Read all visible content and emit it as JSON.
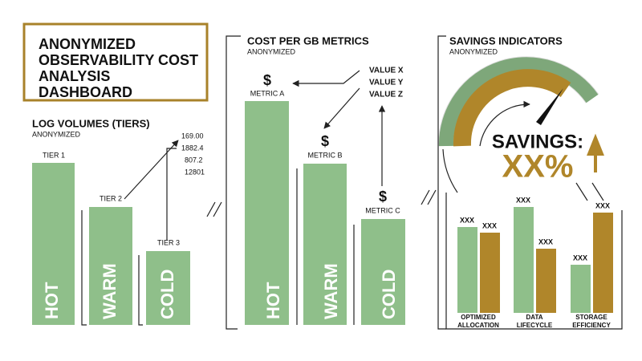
{
  "title": [
    "ANONYMIZED",
    "OBSERVABILITY COST",
    "ANALYSIS",
    "DASHBOARD"
  ],
  "log_volumes": {
    "title": "LOG VOLUMES (TIERS)",
    "subtitle": "ANONYMIZED",
    "tiers": [
      {
        "label": "TIER 1",
        "name": "HOT"
      },
      {
        "label": "TIER 2",
        "name": "WARM"
      },
      {
        "label": "TIER 3",
        "name": "COLD"
      }
    ],
    "numbers": [
      "169.00",
      "1882.4",
      "807.2",
      "12801"
    ]
  },
  "cost_per_gb": {
    "title": "COST PER GB METRICS",
    "subtitle": "ANONYMIZED",
    "metrics": [
      {
        "icon": "$",
        "label": "METRIC A",
        "name": "HOT"
      },
      {
        "icon": "$",
        "label": "METRIC B",
        "name": "WARM"
      },
      {
        "icon": "$",
        "label": "METRIC C",
        "name": "COLD"
      }
    ],
    "legend": [
      "VALUE X",
      "VALUE Y",
      "VALUE Z"
    ]
  },
  "savings": {
    "title": "SAVINGS INDICATORS",
    "subtitle": "ANONYMIZED",
    "headline": "SAVINGS:",
    "value": "XX%",
    "groups": [
      {
        "label": [
          "OPTIMIZED",
          "ALLOCATION"
        ],
        "values": [
          "XXX",
          "XXX"
        ]
      },
      {
        "label": [
          "DATA",
          "LIFECYCLE"
        ],
        "values": [
          "XXX",
          "XXX"
        ]
      },
      {
        "label": [
          "STORAGE",
          "EFFICIENCY"
        ],
        "values": [
          "XXX",
          "XXX"
        ]
      }
    ]
  }
}
